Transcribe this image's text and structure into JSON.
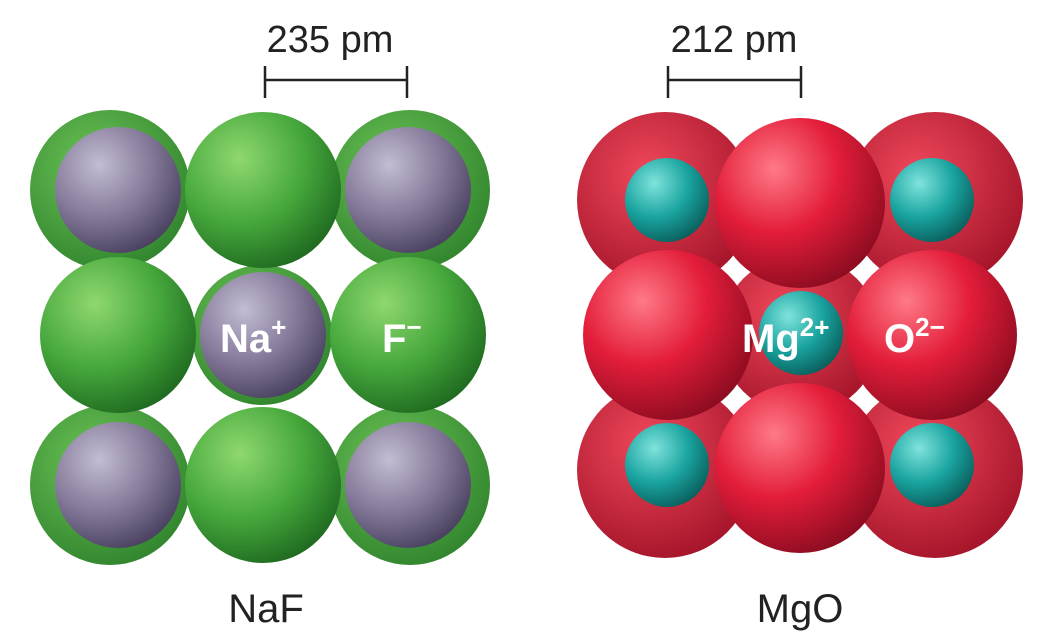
{
  "naf": {
    "distance_label": "235 pm",
    "cation_symbol": "Na",
    "cation_charge": "+",
    "anion_symbol": "F",
    "anion_charge": "−",
    "caption": "NaF",
    "cation_color": "#8a7f9e",
    "anion_color": "#3fa63a"
  },
  "mgo": {
    "distance_label": "212 pm",
    "cation_symbol": "Mg",
    "cation_charge": "2+",
    "anion_symbol": "O",
    "anion_charge": "2−",
    "caption": "MgO",
    "cation_color": "#1aa3a0",
    "anion_color": "#e0203c"
  }
}
